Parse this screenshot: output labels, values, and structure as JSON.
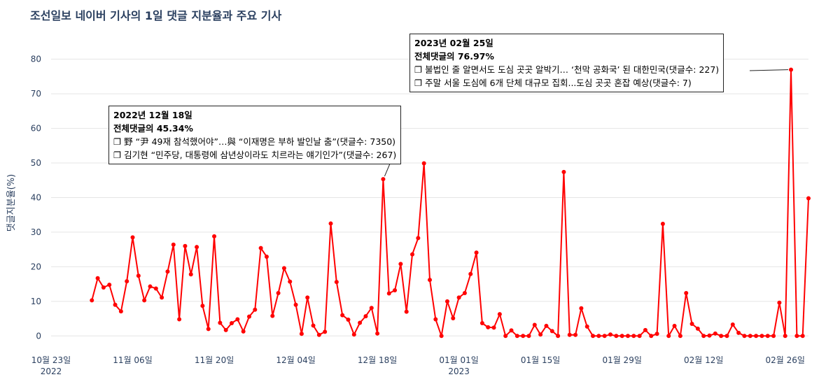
{
  "chart_data": {
    "type": "line",
    "title": "조선일보 네이버 기사의 1일 댓글 지분율과 주요 기사",
    "ylabel": "댓글지분율(%)",
    "xlabel": "",
    "ylim": [
      -5,
      86
    ],
    "yticks": [
      0,
      10,
      20,
      30,
      40,
      50,
      60,
      70,
      80
    ],
    "x_start": "2022-10-23",
    "x_end": "2023-03-02",
    "xticks": [
      {
        "date": "2022-10-23",
        "label": "10월 23일",
        "year": "2022"
      },
      {
        "date": "2022-11-06",
        "label": "11월 06일",
        "year": ""
      },
      {
        "date": "2022-11-20",
        "label": "11월 20일",
        "year": ""
      },
      {
        "date": "2022-12-04",
        "label": "12월 04일",
        "year": ""
      },
      {
        "date": "2022-12-18",
        "label": "12월 18일",
        "year": ""
      },
      {
        "date": "2023-01-01",
        "label": "01월 01일",
        "year": "2023"
      },
      {
        "date": "2023-01-15",
        "label": "01월 15일",
        "year": ""
      },
      {
        "date": "2023-01-29",
        "label": "01월 29일",
        "year": ""
      },
      {
        "date": "2023-02-12",
        "label": "02월 12일",
        "year": ""
      },
      {
        "date": "2023-02-26",
        "label": "02월 26일",
        "year": ""
      }
    ],
    "line_color": "#ff0000",
    "grid": true,
    "series": [
      {
        "start_date": "2022-10-30",
        "values": [
          10.3,
          16.7,
          14.0,
          14.8,
          9.0,
          7.1,
          15.8,
          28.5,
          17.4,
          10.3,
          14.3,
          13.7,
          11.1,
          18.6,
          26.4,
          4.8,
          26.0,
          17.8,
          25.7,
          8.7,
          2.0,
          28.8,
          3.8,
          1.7,
          3.7,
          4.8,
          1.3,
          5.6,
          7.6,
          25.4,
          22.9,
          5.8,
          12.4,
          19.6,
          15.7,
          9.0,
          0.6,
          11.1,
          3.0,
          0.3,
          1.2,
          32.5,
          15.6,
          6.0,
          4.7,
          0.4,
          3.8,
          5.7,
          8.1,
          0.7,
          45.34,
          12.3,
          13.2,
          20.8,
          7.0,
          23.6,
          28.3,
          49.9,
          16.2,
          4.8,
          0.0,
          10.0,
          5.1,
          11.1,
          12.4,
          17.9,
          24.1,
          3.7,
          2.5,
          2.4,
          6.3,
          0.0,
          1.6,
          0.0,
          0.0,
          0.0,
          3.2,
          0.4,
          2.9,
          1.4,
          0.0,
          47.4,
          0.3,
          0.3,
          8.0,
          2.7,
          0.0,
          0.0,
          0.0,
          0.4,
          0.0,
          0.0,
          0.0,
          0.0,
          0.0,
          1.7,
          0.0,
          0.6,
          32.4,
          0.0,
          2.9,
          0.0,
          12.4,
          3.5,
          2.1,
          0.0,
          0.1,
          0.7,
          0.0,
          0.0,
          3.3,
          0.9,
          0.0,
          0.0,
          0.0,
          0.0,
          0.0,
          0.0,
          9.6,
          0.0,
          76.97,
          0.0,
          0.0,
          39.8
        ]
      }
    ],
    "annotations": [
      {
        "date": "2022년 12월 18일",
        "share": "전체댓글의 45.34%",
        "items": [
          "❐ 野 “尹 49재 참석했어야”…與 “이재명은 부하 발인날 춤”(댓글수: 7350)",
          "❐ 김기현 “민주당, 대통령에 삼년상이라도 치르라는 얘기인가”(댓글수: 267)"
        ]
      },
      {
        "date": "2023년 02월 25일",
        "share": "전체댓글의 76.97%",
        "items": [
          "❐ 불법인 줄 알면서도 도심 곳곳 알박기… ‘천막 공화국’ 된 대한민국(댓글수: 227)",
          "❐ 주말 서울 도심에 6개 단체 대규모 집회...도심 곳곳 혼잡 예상(댓글수: 7)"
        ]
      }
    ]
  }
}
